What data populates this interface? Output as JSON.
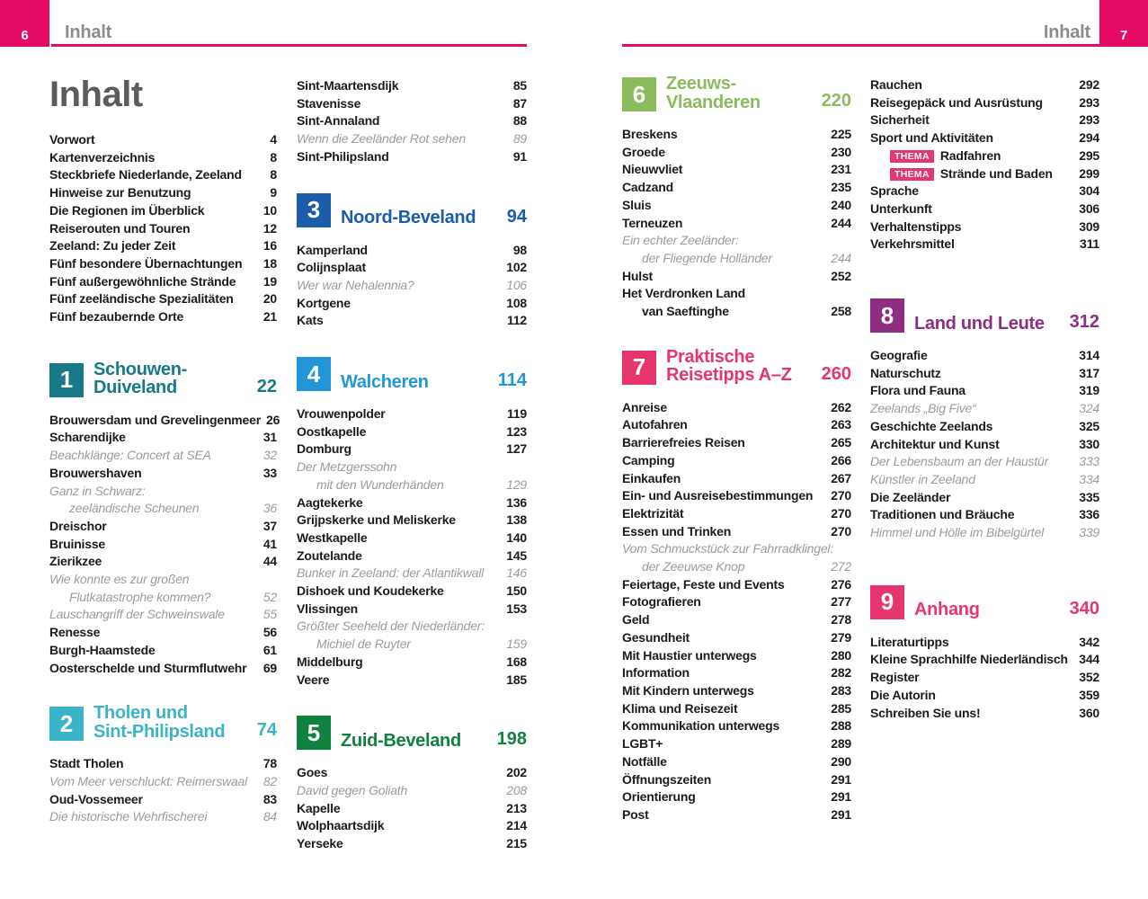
{
  "header_left": {
    "page": "6",
    "label": "Inhalt"
  },
  "header_right": {
    "page": "7",
    "label": "Inhalt"
  },
  "accent": {
    "header_pink": "#e50a63",
    "thema_pink": "#e6366d"
  },
  "columns": [
    {
      "blocks": [
        {
          "type": "title",
          "text": "Inhalt"
        },
        {
          "type": "entries",
          "rows": [
            {
              "l": "Vorwort",
              "p": "4"
            },
            {
              "l": "Kartenverzeichnis",
              "p": "8"
            },
            {
              "l": "Steckbriefe Niederlande, Zeeland",
              "p": "8"
            },
            {
              "l": "Hinweise zur Benutzung",
              "p": "9"
            },
            {
              "l": "Die Regionen im Überblick",
              "p": "10"
            },
            {
              "l": "Reiserouten und Touren",
              "p": "12"
            },
            {
              "l": "Zeeland: Zu jeder Zeit",
              "p": "16"
            },
            {
              "l": "Fünf besondere Übernachtungen",
              "p": "18"
            },
            {
              "l": "Fünf außergewöhnliche Strände",
              "p": "19"
            },
            {
              "l": "Fünf zeeländische Spezialitäten",
              "p": "20"
            },
            {
              "l": "Fünf bezaubernde Orte",
              "p": "21"
            }
          ]
        },
        {
          "type": "section",
          "num": "1",
          "title": [
            "Schouwen-",
            "Duiveland"
          ],
          "page": "22",
          "color": "#187a89",
          "mt": 38
        },
        {
          "type": "entries",
          "rows": [
            {
              "l": "Brouwersdam und Grevelingenmeer",
              "p": "26"
            },
            {
              "l": "Scharendijke",
              "p": "31"
            },
            {
              "l": "Beachklänge: Concert at SEA",
              "p": "32",
              "s": "f"
            },
            {
              "l": "Brouwershaven",
              "p": "33"
            },
            {
              "l": "Ganz in Schwarz:",
              "p": "",
              "s": "f"
            },
            {
              "l": "zeeländische Scheunen",
              "p": "36",
              "s": "fi"
            },
            {
              "l": "Dreischor",
              "p": "37"
            },
            {
              "l": "Bruinisse",
              "p": "41"
            },
            {
              "l": "Zierikzee",
              "p": "44"
            },
            {
              "l": "Wie konnte es zur großen",
              "p": "",
              "s": "f"
            },
            {
              "l": "Flutkatastrophe kommen?",
              "p": "52",
              "s": "fi"
            },
            {
              "l": "Lauschangriff der Schweinswale",
              "p": "55",
              "s": "f"
            },
            {
              "l": "Renesse",
              "p": "56"
            },
            {
              "l": "Burgh-Haamstede",
              "p": "61"
            },
            {
              "l": "Oosterschelde und Sturmflutwehr",
              "p": "69"
            }
          ]
        },
        {
          "type": "section",
          "num": "2",
          "title": [
            "Tholen und",
            "Sint-Philipsland"
          ],
          "page": "74",
          "color": "#3cb4c7"
        },
        {
          "type": "entries",
          "rows": [
            {
              "l": "Stadt Tholen",
              "p": "78"
            },
            {
              "l": "Vom Meer verschluckt: Reimerswaal",
              "p": "82",
              "s": "f"
            },
            {
              "l": "Oud-Vossemeer",
              "p": "83"
            },
            {
              "l": "Die historische Wehrfischerei",
              "p": "84",
              "s": "f"
            }
          ]
        }
      ]
    },
    {
      "blocks": [
        {
          "type": "entries",
          "rows": [
            {
              "l": "Sint-Maartensdijk",
              "p": "85"
            },
            {
              "l": "Stavenisse",
              "p": "87"
            },
            {
              "l": "Sint-Annaland",
              "p": "88"
            },
            {
              "l": "Wenn die Zeeländer Rot sehen",
              "p": "89",
              "s": "f"
            },
            {
              "l": "Sint-Philipsland",
              "p": "91"
            }
          ]
        },
        {
          "type": "section",
          "num": "3",
          "title": [
            "Noord-Beveland"
          ],
          "page": "94",
          "color": "#1d5cab"
        },
        {
          "type": "entries",
          "rows": [
            {
              "l": "Kamperland",
              "p": "98"
            },
            {
              "l": "Colijnsplaat",
              "p": "102"
            },
            {
              "l": "Wer war Nehalennia?",
              "p": "106",
              "s": "f"
            },
            {
              "l": "Kortgene",
              "p": "108"
            },
            {
              "l": "Kats",
              "p": "112"
            }
          ]
        },
        {
          "type": "section",
          "num": "4",
          "title": [
            "Walcheren"
          ],
          "page": "114",
          "color": "#2197da"
        },
        {
          "type": "entries",
          "rows": [
            {
              "l": "Vrouwenpolder",
              "p": "119"
            },
            {
              "l": "Oostkapelle",
              "p": "123"
            },
            {
              "l": "Domburg",
              "p": "127"
            },
            {
              "l": "Der Metzgerssohn",
              "p": "",
              "s": "f"
            },
            {
              "l": "mit den Wunderhänden",
              "p": "129",
              "s": "fi"
            },
            {
              "l": "Aagtekerke",
              "p": "136"
            },
            {
              "l": "Grijpskerke und Meliskerke",
              "p": "138"
            },
            {
              "l": "Westkapelle",
              "p": "140"
            },
            {
              "l": "Zoutelande",
              "p": "145"
            },
            {
              "l": "Bunker in Zeeland: der Atlantikwall",
              "p": "146",
              "s": "f"
            },
            {
              "l": "Dishoek und Koudekerke",
              "p": "150"
            },
            {
              "l": "Vlissingen",
              "p": "153"
            },
            {
              "l": "Größter Seeheld der Niederländer:",
              "p": "",
              "s": "f"
            },
            {
              "l": "Michiel de Ruyter",
              "p": "159",
              "s": "fi"
            },
            {
              "l": "Middelburg",
              "p": "168"
            },
            {
              "l": "Veere",
              "p": "185"
            }
          ]
        },
        {
          "type": "section",
          "num": "5",
          "title": [
            "Zuid-Beveland"
          ],
          "page": "198",
          "color": "#11813f"
        },
        {
          "type": "entries",
          "rows": [
            {
              "l": "Goes",
              "p": "202"
            },
            {
              "l": "David gegen Goliath",
              "p": "208",
              "s": "f"
            },
            {
              "l": "Kapelle",
              "p": "213"
            },
            {
              "l": "Wolphaartsdijk",
              "p": "214"
            },
            {
              "l": "Yerseke",
              "p": "215"
            }
          ]
        }
      ]
    },
    {
      "blocks": [
        {
          "type": "section",
          "num": "6",
          "title": [
            "Zeeuws-",
            "Vlaanderen"
          ],
          "page": "220",
          "color": "#8cbb5e",
          "mt": 0
        },
        {
          "type": "entries",
          "rows": [
            {
              "l": "Breskens",
              "p": "225"
            },
            {
              "l": "Groede",
              "p": "230"
            },
            {
              "l": "Nieuwvliet",
              "p": "231"
            },
            {
              "l": "Cadzand",
              "p": "235"
            },
            {
              "l": "Sluis",
              "p": "240"
            },
            {
              "l": "Terneuzen",
              "p": "244"
            },
            {
              "l": "Ein echter Zeeländer:",
              "p": "",
              "s": "f"
            },
            {
              "l": "der Fliegende Holländer",
              "p": "244",
              "s": "fi"
            },
            {
              "l": "Hulst",
              "p": "252"
            },
            {
              "l": "Het Verdronken Land",
              "p": ""
            },
            {
              "l": "van Saeftinghe",
              "p": "258",
              "s": "i"
            }
          ]
        },
        {
          "type": "section",
          "num": "7",
          "title": [
            "Praktische",
            "Reisetipps A–Z"
          ],
          "page": "260",
          "color": "#e6366d"
        },
        {
          "type": "entries",
          "rows": [
            {
              "l": "Anreise",
              "p": "262"
            },
            {
              "l": "Autofahren",
              "p": "263"
            },
            {
              "l": "Barrierefreies Reisen",
              "p": "265"
            },
            {
              "l": "Camping",
              "p": "266"
            },
            {
              "l": "Einkaufen",
              "p": "267"
            },
            {
              "l": "Ein- und Ausreisebestimmungen",
              "p": "270"
            },
            {
              "l": "Elektrizität",
              "p": "270"
            },
            {
              "l": "Essen und Trinken",
              "p": "270"
            },
            {
              "l": "Vom Schmuckstück zur Fahrradklingel:",
              "p": "",
              "s": "f"
            },
            {
              "l": "der Zeeuwse Knop",
              "p": "272",
              "s": "fi"
            },
            {
              "l": "Feiertage, Feste und Events",
              "p": "276"
            },
            {
              "l": "Fotografieren",
              "p": "277"
            },
            {
              "l": "Geld",
              "p": "278"
            },
            {
              "l": "Gesundheit",
              "p": "279"
            },
            {
              "l": "Mit Haustier unterwegs",
              "p": "280"
            },
            {
              "l": "Information",
              "p": "282"
            },
            {
              "l": "Mit Kindern unterwegs",
              "p": "283"
            },
            {
              "l": "Klima und Reisezeit",
              "p": "285"
            },
            {
              "l": "Kommunikation unterwegs",
              "p": "288"
            },
            {
              "l": "LGBT+",
              "p": "289"
            },
            {
              "l": "Notfälle",
              "p": "290"
            },
            {
              "l": "Öffnungszeiten",
              "p": "291"
            },
            {
              "l": "Orientierung",
              "p": "291"
            },
            {
              "l": "Post",
              "p": "291"
            }
          ]
        }
      ]
    },
    {
      "blocks": [
        {
          "type": "entries",
          "rows": [
            {
              "l": "Rauchen",
              "p": "292"
            },
            {
              "l": "Reisegepäck und Ausrüstung",
              "p": "293"
            },
            {
              "l": "Sicherheit",
              "p": "293"
            },
            {
              "l": "Sport und Aktivitäten",
              "p": "294"
            },
            {
              "l": "Radfahren",
              "p": "295",
              "s": "i",
              "badge": "THEMA"
            },
            {
              "l": "Strände und Baden",
              "p": "299",
              "s": "i",
              "badge": "THEMA"
            },
            {
              "l": "Sprache",
              "p": "304"
            },
            {
              "l": "Unterkunft",
              "p": "306"
            },
            {
              "l": "Verhaltenstipps",
              "p": "309"
            },
            {
              "l": "Verkehrsmittel",
              "p": "311"
            }
          ]
        },
        {
          "type": "section",
          "num": "8",
          "title": [
            "Land und Leute"
          ],
          "page": "312",
          "color": "#8f2e80",
          "mt": 50
        },
        {
          "type": "entries",
          "rows": [
            {
              "l": "Geografie",
              "p": "314"
            },
            {
              "l": "Naturschutz",
              "p": "317"
            },
            {
              "l": "Flora und Fauna",
              "p": "319"
            },
            {
              "l": "Zeelands „Big Five“",
              "p": "324",
              "s": "f"
            },
            {
              "l": "Geschichte Zeelands",
              "p": "325"
            },
            {
              "l": "Architektur und Kunst",
              "p": "330"
            },
            {
              "l": "Der Lebensbaum an der Haustür",
              "p": "333",
              "s": "f"
            },
            {
              "l": "Künstler in Zeeland",
              "p": "334",
              "s": "f"
            },
            {
              "l": "Die Zeeländer",
              "p": "335"
            },
            {
              "l": "Traditionen und Bräuche",
              "p": "336"
            },
            {
              "l": "Himmel und Hölle im Bibelgürtel",
              "p": "339",
              "s": "f"
            }
          ]
        },
        {
          "type": "section",
          "num": "9",
          "title": [
            "Anhang"
          ],
          "page": "340",
          "color": "#e6366d",
          "mt": 48
        },
        {
          "type": "entries",
          "rows": [
            {
              "l": "Literaturtipps",
              "p": "342"
            },
            {
              "l": "Kleine Sprachhilfe Niederländisch",
              "p": "344"
            },
            {
              "l": "Register",
              "p": "352"
            },
            {
              "l": "Die Autorin",
              "p": "359"
            },
            {
              "l": "Schreiben Sie uns!",
              "p": "360"
            }
          ]
        }
      ]
    }
  ]
}
